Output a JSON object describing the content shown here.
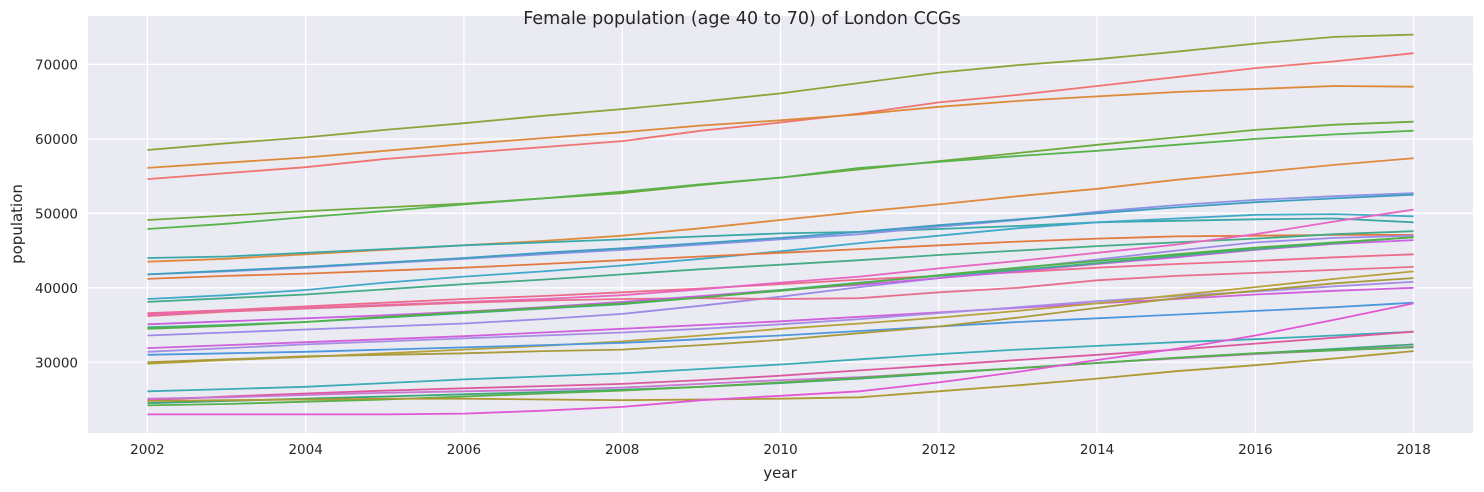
{
  "chart_data": {
    "type": "line",
    "title": "Female population (age 40 to 70) of London CCGs",
    "xlabel": "year",
    "ylabel": "population",
    "xlim": [
      2001.25,
      2018.75
    ],
    "ylim": [
      20500,
      76500
    ],
    "x_ticks": [
      2002,
      2004,
      2006,
      2008,
      2010,
      2012,
      2014,
      2016,
      2018
    ],
    "y_ticks": [
      30000,
      40000,
      50000,
      60000,
      70000
    ],
    "grid": true,
    "background": "#eaeaf2",
    "grid_color": "#ffffff",
    "x": [
      2002,
      2003,
      2004,
      2005,
      2006,
      2007,
      2008,
      2009,
      2010,
      2011,
      2012,
      2013,
      2014,
      2015,
      2016,
      2017,
      2018
    ],
    "series": [
      {
        "color": "#8ea43a",
        "values": [
          58500,
          59400,
          60200,
          61200,
          62100,
          63100,
          64000,
          65000,
          66100,
          67500,
          68900,
          69900,
          70700,
          71700,
          72800,
          73700,
          74000
        ]
      },
      {
        "color": "#f07470",
        "values": [
          54600,
          55400,
          56200,
          57300,
          58100,
          58900,
          59700,
          61100,
          62200,
          63400,
          64900,
          65900,
          67100,
          68300,
          69500,
          70400,
          71500
        ]
      },
      {
        "color": "#dc8a39",
        "values": [
          56100,
          56800,
          57500,
          58400,
          59300,
          60100,
          60900,
          61800,
          62500,
          63300,
          64300,
          65100,
          65700,
          66300,
          66700,
          67100,
          67000
        ]
      },
      {
        "color": "#6fab3b",
        "values": [
          49100,
          49700,
          50300,
          50800,
          51300,
          52000,
          52700,
          53800,
          54800,
          55900,
          57000,
          58100,
          59200,
          60200,
          61200,
          61900,
          62300
        ]
      },
      {
        "color": "#57b34c",
        "values": [
          47900,
          48600,
          49500,
          50300,
          51200,
          52000,
          52900,
          53900,
          54800,
          56100,
          56900,
          57700,
          58400,
          59200,
          60000,
          60600,
          61100
        ]
      },
      {
        "color": "#e08a3e",
        "values": [
          43500,
          43900,
          44500,
          45100,
          45700,
          46300,
          47000,
          48000,
          49100,
          50200,
          51200,
          52300,
          53300,
          54500,
          55500,
          56500,
          57400
        ]
      },
      {
        "color": "#3aa8a6",
        "values": [
          44000,
          44200,
          44700,
          45200,
          45700,
          46100,
          46500,
          46900,
          47300,
          47500,
          47900,
          48300,
          48800,
          49000,
          49200,
          49300,
          48800
        ]
      },
      {
        "color": "#41a9c9",
        "values": [
          38500,
          39000,
          39700,
          40700,
          41500,
          42200,
          43000,
          43900,
          44900,
          46000,
          47000,
          48000,
          48800,
          49300,
          49800,
          49900,
          49600
        ]
      },
      {
        "color": "#8b94e5",
        "values": [
          41800,
          42200,
          42700,
          43300,
          43900,
          44500,
          45100,
          45800,
          46500,
          47200,
          48200,
          49100,
          50200,
          51100,
          51800,
          52300,
          52700
        ]
      },
      {
        "color": "#3f9ec0",
        "values": [
          41800,
          42300,
          42800,
          43400,
          44000,
          44700,
          45300,
          46000,
          46700,
          47500,
          48400,
          49200,
          50000,
          50800,
          51500,
          52000,
          52500
        ]
      },
      {
        "color": "#ed6c8c",
        "values": [
          36600,
          37000,
          37500,
          38000,
          38500,
          38900,
          39400,
          39900,
          40500,
          41100,
          41600,
          42100,
          42700,
          43200,
          43600,
          44100,
          44500
        ]
      },
      {
        "color": "#e27a3f",
        "values": [
          41200,
          41600,
          41900,
          42300,
          42700,
          43200,
          43700,
          44200,
          44700,
          45200,
          45700,
          46200,
          46600,
          46900,
          47000,
          47100,
          47100
        ]
      },
      {
        "color": "#44ab86",
        "values": [
          38100,
          38600,
          39100,
          39800,
          40500,
          41100,
          41800,
          42500,
          43100,
          43700,
          44400,
          45000,
          45600,
          46100,
          46600,
          47200,
          47600
        ]
      },
      {
        "color": "#9d8ae8",
        "values": [
          33600,
          34000,
          34400,
          34800,
          35200,
          35800,
          36500,
          37600,
          38800,
          40100,
          41300,
          42600,
          43800,
          45000,
          46100,
          46700,
          47000
        ]
      },
      {
        "color": "#e866c2",
        "values": [
          36400,
          36900,
          37300,
          37700,
          38100,
          38500,
          39000,
          39800,
          40700,
          41500,
          42600,
          43600,
          44700,
          45800,
          47200,
          48900,
          50500
        ]
      },
      {
        "color": "#e8708f",
        "values": [
          36200,
          36800,
          37200,
          37600,
          38000,
          38300,
          38500,
          38600,
          38500,
          38600,
          39400,
          40000,
          41000,
          41600,
          42000,
          42400,
          42800
        ]
      },
      {
        "color": "#c962e0",
        "values": [
          35100,
          35500,
          35900,
          36300,
          36800,
          37400,
          38100,
          38900,
          39700,
          40400,
          41300,
          42200,
          43200,
          44100,
          45100,
          45900,
          46400
        ]
      },
      {
        "color": "#3fb080",
        "values": [
          34700,
          35000,
          35400,
          36000,
          36600,
          37200,
          37800,
          38700,
          39700,
          40700,
          41600,
          42400,
          43300,
          44300,
          45200,
          46000,
          46800
        ]
      },
      {
        "color": "#52b146",
        "values": [
          34500,
          34900,
          35400,
          36100,
          36700,
          37300,
          37900,
          38700,
          39600,
          40600,
          41700,
          42700,
          43600,
          44500,
          45400,
          46100,
          46800
        ]
      },
      {
        "color": "#d160dd",
        "values": [
          31900,
          32300,
          32700,
          33100,
          33500,
          34000,
          34500,
          35000,
          35500,
          36100,
          36700,
          37300,
          37900,
          38500,
          39100,
          39600,
          40000
        ]
      },
      {
        "color": "#a58ee4",
        "values": [
          31400,
          31900,
          32400,
          32800,
          33200,
          33600,
          34000,
          34500,
          35100,
          35800,
          36600,
          37400,
          38200,
          38900,
          39500,
          40200,
          40800
        ]
      },
      {
        "color": "#b7a23b",
        "values": [
          29800,
          30300,
          30700,
          31200,
          31700,
          32200,
          32800,
          33600,
          34500,
          35200,
          36000,
          36900,
          37900,
          39000,
          40100,
          41200,
          42200
        ]
      },
      {
        "color": "#4d98dc",
        "values": [
          31000,
          31200,
          31400,
          31700,
          32000,
          32300,
          32600,
          33100,
          33600,
          34200,
          34800,
          35400,
          35900,
          36400,
          36900,
          37400,
          38000
        ]
      },
      {
        "color": "#a99a3c",
        "values": [
          30000,
          30400,
          30800,
          31000,
          31200,
          31500,
          31700,
          32300,
          33000,
          33900,
          34800,
          36000,
          37300,
          38600,
          39600,
          40600,
          41300
        ]
      },
      {
        "color": "#3bacb8",
        "values": [
          26100,
          26400,
          26700,
          27200,
          27700,
          28100,
          28500,
          29100,
          29700,
          30400,
          31100,
          31700,
          32200,
          32700,
          33100,
          33600,
          34100
        ]
      },
      {
        "color": "#db5a9e",
        "values": [
          24900,
          25400,
          25800,
          26200,
          26500,
          26800,
          27100,
          27600,
          28200,
          28900,
          29600,
          30300,
          31000,
          31700,
          32500,
          33300,
          34100
        ]
      },
      {
        "color": "#c977d2",
        "values": [
          25100,
          25300,
          25600,
          25900,
          26100,
          26300,
          26600,
          27100,
          27600,
          28000,
          28600,
          29200,
          29900,
          30500,
          31100,
          31600,
          32100
        ]
      },
      {
        "color": "#3ea67a",
        "values": [
          24500,
          24800,
          25100,
          25400,
          25700,
          26000,
          26300,
          26700,
          27200,
          27800,
          28500,
          29200,
          29900,
          30600,
          31200,
          31800,
          32400
        ]
      },
      {
        "color": "#57b04a",
        "values": [
          24200,
          24400,
          24700,
          25000,
          25400,
          25800,
          26200,
          26700,
          27300,
          27900,
          28600,
          29200,
          29900,
          30600,
          31200,
          31600,
          32000
        ]
      },
      {
        "color": "#ad9a34",
        "values": [
          24800,
          24900,
          25000,
          25100,
          25100,
          25000,
          24900,
          25000,
          25100,
          25300,
          26100,
          26900,
          27800,
          28800,
          29600,
          30500,
          31500
        ]
      },
      {
        "color": "#e257d4",
        "values": [
          23000,
          23000,
          23000,
          23000,
          23100,
          23500,
          24000,
          24900,
          25500,
          26100,
          27300,
          28700,
          30300,
          31800,
          33600,
          35700,
          37900
        ]
      }
    ]
  }
}
